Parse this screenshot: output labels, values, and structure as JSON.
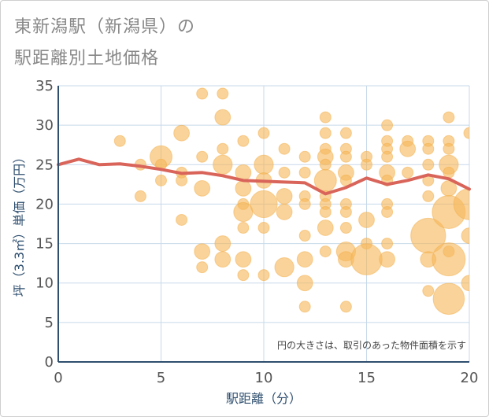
{
  "title_line1": "東新潟駅（新潟県）の",
  "title_line2": "駅距離別土地価格",
  "chart_data": {
    "type": "scatter",
    "xlabel": "駅距離（分）",
    "ylabel": "坪（3.3㎡）単価（万円）",
    "xlim": [
      0,
      20
    ],
    "ylim": [
      0,
      35
    ],
    "xticks": [
      0,
      5,
      10,
      15,
      20
    ],
    "yticks": [
      0,
      5,
      10,
      15,
      20,
      25,
      30,
      35
    ],
    "grid": true,
    "annotation": "円の大きさは、取引のあった物件面積を示す",
    "colors": {
      "bubble": "#f5b85c",
      "line": "#d9645a",
      "grid": "#c7d9ea",
      "axis": "#2f4f6f"
    },
    "bubbles": [
      {
        "x": 3,
        "y": 28,
        "s": 1
      },
      {
        "x": 4,
        "y": 25,
        "s": 1
      },
      {
        "x": 4,
        "y": 21,
        "s": 1
      },
      {
        "x": 5,
        "y": 26,
        "s": 4
      },
      {
        "x": 5,
        "y": 25,
        "s": 1
      },
      {
        "x": 5,
        "y": 23,
        "s": 1
      },
      {
        "x": 6,
        "y": 29,
        "s": 2
      },
      {
        "x": 6,
        "y": 24,
        "s": 1
      },
      {
        "x": 6,
        "y": 23,
        "s": 1
      },
      {
        "x": 6,
        "y": 18,
        "s": 1
      },
      {
        "x": 7,
        "y": 34,
        "s": 1
      },
      {
        "x": 7,
        "y": 26,
        "s": 1
      },
      {
        "x": 7,
        "y": 22,
        "s": 2
      },
      {
        "x": 7,
        "y": 14,
        "s": 2
      },
      {
        "x": 7,
        "y": 12,
        "s": 1
      },
      {
        "x": 8,
        "y": 34,
        "s": 1
      },
      {
        "x": 8,
        "y": 31,
        "s": 2
      },
      {
        "x": 8,
        "y": 27,
        "s": 1
      },
      {
        "x": 8,
        "y": 25,
        "s": 3
      },
      {
        "x": 8,
        "y": 15,
        "s": 2
      },
      {
        "x": 8,
        "y": 13,
        "s": 2
      },
      {
        "x": 9,
        "y": 28,
        "s": 1
      },
      {
        "x": 9,
        "y": 24,
        "s": 2
      },
      {
        "x": 9,
        "y": 22,
        "s": 2
      },
      {
        "x": 9,
        "y": 20,
        "s": 1
      },
      {
        "x": 9,
        "y": 19,
        "s": 3
      },
      {
        "x": 9,
        "y": 17,
        "s": 1
      },
      {
        "x": 9,
        "y": 13,
        "s": 2
      },
      {
        "x": 9,
        "y": 11,
        "s": 1
      },
      {
        "x": 10,
        "y": 29,
        "s": 1
      },
      {
        "x": 10,
        "y": 25,
        "s": 3
      },
      {
        "x": 10,
        "y": 23,
        "s": 2
      },
      {
        "x": 10,
        "y": 20,
        "s": 6
      },
      {
        "x": 10,
        "y": 17,
        "s": 1
      },
      {
        "x": 10,
        "y": 11,
        "s": 1
      },
      {
        "x": 11,
        "y": 27,
        "s": 1
      },
      {
        "x": 11,
        "y": 24,
        "s": 1
      },
      {
        "x": 11,
        "y": 21,
        "s": 2
      },
      {
        "x": 11,
        "y": 19,
        "s": 2
      },
      {
        "x": 11,
        "y": 12,
        "s": 3
      },
      {
        "x": 12,
        "y": 26,
        "s": 1
      },
      {
        "x": 12,
        "y": 24,
        "s": 1
      },
      {
        "x": 12,
        "y": 21,
        "s": 1
      },
      {
        "x": 12,
        "y": 20,
        "s": 1
      },
      {
        "x": 12,
        "y": 16,
        "s": 1
      },
      {
        "x": 12,
        "y": 13,
        "s": 2
      },
      {
        "x": 12,
        "y": 10,
        "s": 2
      },
      {
        "x": 12,
        "y": 7,
        "s": 1
      },
      {
        "x": 13,
        "y": 31,
        "s": 1
      },
      {
        "x": 13,
        "y": 29,
        "s": 1
      },
      {
        "x": 13,
        "y": 27,
        "s": 1
      },
      {
        "x": 13,
        "y": 26,
        "s": 2
      },
      {
        "x": 13,
        "y": 25,
        "s": 1
      },
      {
        "x": 13,
        "y": 23,
        "s": 4
      },
      {
        "x": 13,
        "y": 21,
        "s": 1
      },
      {
        "x": 13,
        "y": 20,
        "s": 1
      },
      {
        "x": 13,
        "y": 19,
        "s": 1
      },
      {
        "x": 13,
        "y": 17,
        "s": 2
      },
      {
        "x": 13,
        "y": 14,
        "s": 1
      },
      {
        "x": 14,
        "y": 29,
        "s": 1
      },
      {
        "x": 14,
        "y": 27,
        "s": 1
      },
      {
        "x": 14,
        "y": 26,
        "s": 1
      },
      {
        "x": 14,
        "y": 24,
        "s": 2
      },
      {
        "x": 14,
        "y": 23,
        "s": 1
      },
      {
        "x": 14,
        "y": 20,
        "s": 1
      },
      {
        "x": 14,
        "y": 19,
        "s": 1
      },
      {
        "x": 14,
        "y": 17,
        "s": 1
      },
      {
        "x": 14,
        "y": 14,
        "s": 3
      },
      {
        "x": 14,
        "y": 13,
        "s": 2
      },
      {
        "x": 14,
        "y": 7,
        "s": 1
      },
      {
        "x": 15,
        "y": 26,
        "s": 1
      },
      {
        "x": 15,
        "y": 25,
        "s": 1
      },
      {
        "x": 15,
        "y": 18,
        "s": 2
      },
      {
        "x": 15,
        "y": 15,
        "s": 1
      },
      {
        "x": 15,
        "y": 13,
        "s": 8
      },
      {
        "x": 16,
        "y": 30,
        "s": 1
      },
      {
        "x": 16,
        "y": 28,
        "s": 1
      },
      {
        "x": 16,
        "y": 27,
        "s": 1
      },
      {
        "x": 16,
        "y": 26,
        "s": 1
      },
      {
        "x": 16,
        "y": 24,
        "s": 2
      },
      {
        "x": 16,
        "y": 23,
        "s": 1
      },
      {
        "x": 16,
        "y": 20,
        "s": 1
      },
      {
        "x": 16,
        "y": 19,
        "s": 1
      },
      {
        "x": 16,
        "y": 15,
        "s": 1
      },
      {
        "x": 16,
        "y": 13,
        "s": 2
      },
      {
        "x": 17,
        "y": 28,
        "s": 1
      },
      {
        "x": 17,
        "y": 27,
        "s": 2
      },
      {
        "x": 17,
        "y": 24,
        "s": 1
      },
      {
        "x": 18,
        "y": 28,
        "s": 1
      },
      {
        "x": 18,
        "y": 27,
        "s": 1
      },
      {
        "x": 18,
        "y": 25,
        "s": 1
      },
      {
        "x": 18,
        "y": 23,
        "s": 1
      },
      {
        "x": 18,
        "y": 21,
        "s": 1
      },
      {
        "x": 18,
        "y": 16,
        "s": 10
      },
      {
        "x": 18,
        "y": 13,
        "s": 2
      },
      {
        "x": 18,
        "y": 9,
        "s": 1
      },
      {
        "x": 19,
        "y": 31,
        "s": 1
      },
      {
        "x": 19,
        "y": 28,
        "s": 1
      },
      {
        "x": 19,
        "y": 27,
        "s": 1
      },
      {
        "x": 19,
        "y": 25,
        "s": 3
      },
      {
        "x": 19,
        "y": 24,
        "s": 1
      },
      {
        "x": 19,
        "y": 22,
        "s": 2
      },
      {
        "x": 19,
        "y": 19,
        "s": 9
      },
      {
        "x": 19,
        "y": 14,
        "s": 1
      },
      {
        "x": 19,
        "y": 13,
        "s": 9
      },
      {
        "x": 19,
        "y": 8,
        "s": 8
      },
      {
        "x": 20,
        "y": 29,
        "s": 1
      },
      {
        "x": 20,
        "y": 20,
        "s": 8
      },
      {
        "x": 20,
        "y": 16,
        "s": 2
      },
      {
        "x": 20,
        "y": 10,
        "s": 2
      }
    ],
    "trend": {
      "x": [
        0,
        1,
        2,
        3,
        4,
        5,
        6,
        7,
        8,
        9,
        10,
        11,
        12,
        13,
        14,
        15,
        16,
        17,
        18,
        19,
        20
      ],
      "y": [
        25.0,
        25.7,
        25.0,
        25.1,
        24.8,
        24.4,
        23.9,
        24.0,
        23.6,
        23.0,
        22.9,
        22.8,
        22.7,
        21.3,
        22.1,
        23.3,
        22.5,
        23.0,
        23.7,
        23.2,
        21.9
      ]
    }
  }
}
